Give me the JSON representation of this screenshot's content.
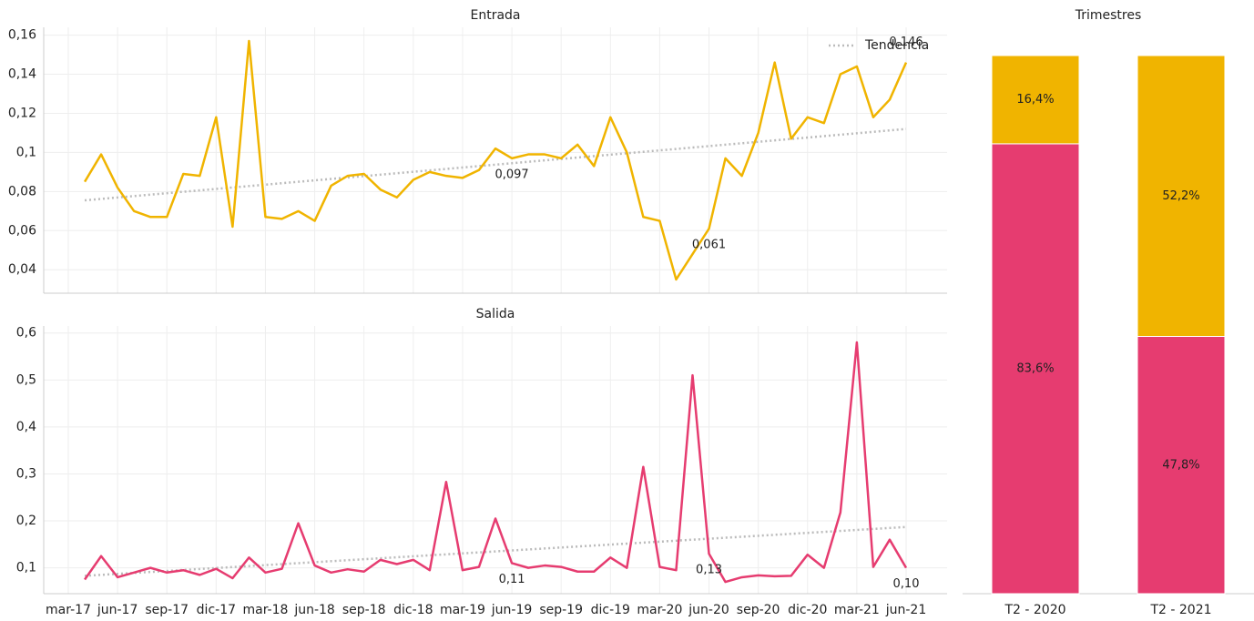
{
  "chart_data": [
    {
      "type": "line",
      "title": "Entrada",
      "color": "#f0b400",
      "values": [
        null,
        0.085,
        0.099,
        0.082,
        0.07,
        0.067,
        0.067,
        0.089,
        0.088,
        0.118,
        0.062,
        0.157,
        0.067,
        0.066,
        0.07,
        0.065,
        0.083,
        0.088,
        0.089,
        0.081,
        0.077,
        0.086,
        0.09,
        0.088,
        0.087,
        0.091,
        0.102,
        0.097,
        0.099,
        0.099,
        0.097,
        0.104,
        0.093,
        0.118,
        0.1,
        0.067,
        0.065,
        0.035,
        0.048,
        0.061,
        0.097,
        0.088,
        0.11,
        0.146,
        0.107,
        0.118,
        0.115,
        0.14,
        0.144,
        0.118,
        0.127,
        0.146
      ],
      "value_labels": [
        null,
        null,
        null,
        null,
        null,
        null,
        null,
        null,
        null,
        null,
        null,
        null,
        null,
        null,
        null,
        null,
        null,
        null,
        null,
        null,
        null,
        null,
        null,
        null,
        null,
        null,
        null,
        "0,097",
        null,
        null,
        null,
        null,
        null,
        null,
        null,
        null,
        null,
        null,
        null,
        "0,061",
        null,
        null,
        null,
        null,
        null,
        null,
        null,
        null,
        null,
        null,
        null,
        "0,146"
      ],
      "trend": {
        "name": "Tendencia",
        "color": "#bbbbbb",
        "start": 0.0755,
        "end": 0.112
      },
      "ylim": [
        0.028,
        0.164
      ],
      "yticks": [
        {
          "value": 0.04,
          "label": "0,04"
        },
        {
          "value": 0.06,
          "label": "0,06"
        },
        {
          "value": 0.08,
          "label": "0,08"
        },
        {
          "value": 0.1,
          "label": "0,1"
        },
        {
          "value": 0.12,
          "label": "0,12"
        },
        {
          "value": 0.14,
          "label": "0,14"
        },
        {
          "value": 0.16,
          "label": "0,16"
        }
      ],
      "grid": true,
      "legend": "top-right"
    },
    {
      "type": "line",
      "title": "Salida",
      "color": "#e63c70",
      "categories": [
        "mar-17",
        null,
        null,
        "jun-17",
        null,
        null,
        "sep-17",
        null,
        null,
        "dic-17",
        null,
        null,
        "mar-18",
        null,
        null,
        "jun-18",
        null,
        null,
        "sep-18",
        null,
        null,
        "dic-18",
        null,
        null,
        "mar-19",
        null,
        null,
        "jun-19",
        null,
        null,
        "sep-19",
        null,
        null,
        "dic-19",
        null,
        null,
        "mar-20",
        null,
        null,
        "jun-20",
        null,
        null,
        "sep-20",
        null,
        null,
        "dic-20",
        null,
        null,
        "mar-21",
        null,
        null,
        "jun-21"
      ],
      "values": [
        null,
        0.075,
        0.125,
        0.08,
        0.09,
        0.1,
        0.09,
        0.095,
        0.085,
        0.098,
        0.078,
        0.122,
        0.09,
        0.098,
        0.195,
        0.105,
        0.09,
        0.097,
        0.092,
        0.117,
        0.108,
        0.117,
        0.095,
        0.283,
        0.095,
        0.102,
        0.205,
        0.11,
        0.1,
        0.105,
        0.102,
        0.092,
        0.092,
        0.122,
        0.1,
        0.315,
        0.102,
        0.095,
        0.51,
        0.13,
        0.07,
        0.08,
        0.084,
        0.082,
        0.083,
        0.128,
        0.1,
        0.218,
        0.58,
        0.102,
        0.16,
        0.1
      ],
      "value_labels": [
        null,
        null,
        null,
        null,
        null,
        null,
        null,
        null,
        null,
        null,
        null,
        null,
        null,
        null,
        null,
        null,
        null,
        null,
        null,
        null,
        null,
        null,
        null,
        null,
        null,
        null,
        null,
        "0,11",
        null,
        null,
        null,
        null,
        null,
        null,
        null,
        null,
        null,
        null,
        null,
        "0,13",
        null,
        null,
        null,
        null,
        null,
        null,
        null,
        null,
        null,
        null,
        null,
        "0,10"
      ],
      "trend": {
        "color": "#bbbbbb",
        "start": 0.083,
        "end": 0.187
      },
      "ylim": [
        0.045,
        0.615
      ],
      "yticks": [
        {
          "value": 0.1,
          "label": "0,1"
        },
        {
          "value": 0.2,
          "label": "0,2"
        },
        {
          "value": 0.3,
          "label": "0,3"
        },
        {
          "value": 0.4,
          "label": "0,4"
        },
        {
          "value": 0.5,
          "label": "0,5"
        },
        {
          "value": 0.6,
          "label": "0,6"
        }
      ],
      "grid": true
    },
    {
      "type": "bar",
      "stacked": true,
      "title": "Trimestres",
      "categories": [
        "T2 - 2020",
        "T2 - 2021"
      ],
      "series": [
        {
          "color": "#e63c70",
          "values": [
            83.6,
            47.8
          ],
          "value_labels": [
            "83,6%",
            "47,8%"
          ]
        },
        {
          "color": "#f0b400",
          "values": [
            16.4,
            52.2
          ],
          "value_labels": [
            "16,4%",
            "52,2%"
          ]
        }
      ],
      "ylim": [
        0,
        100
      ]
    }
  ]
}
